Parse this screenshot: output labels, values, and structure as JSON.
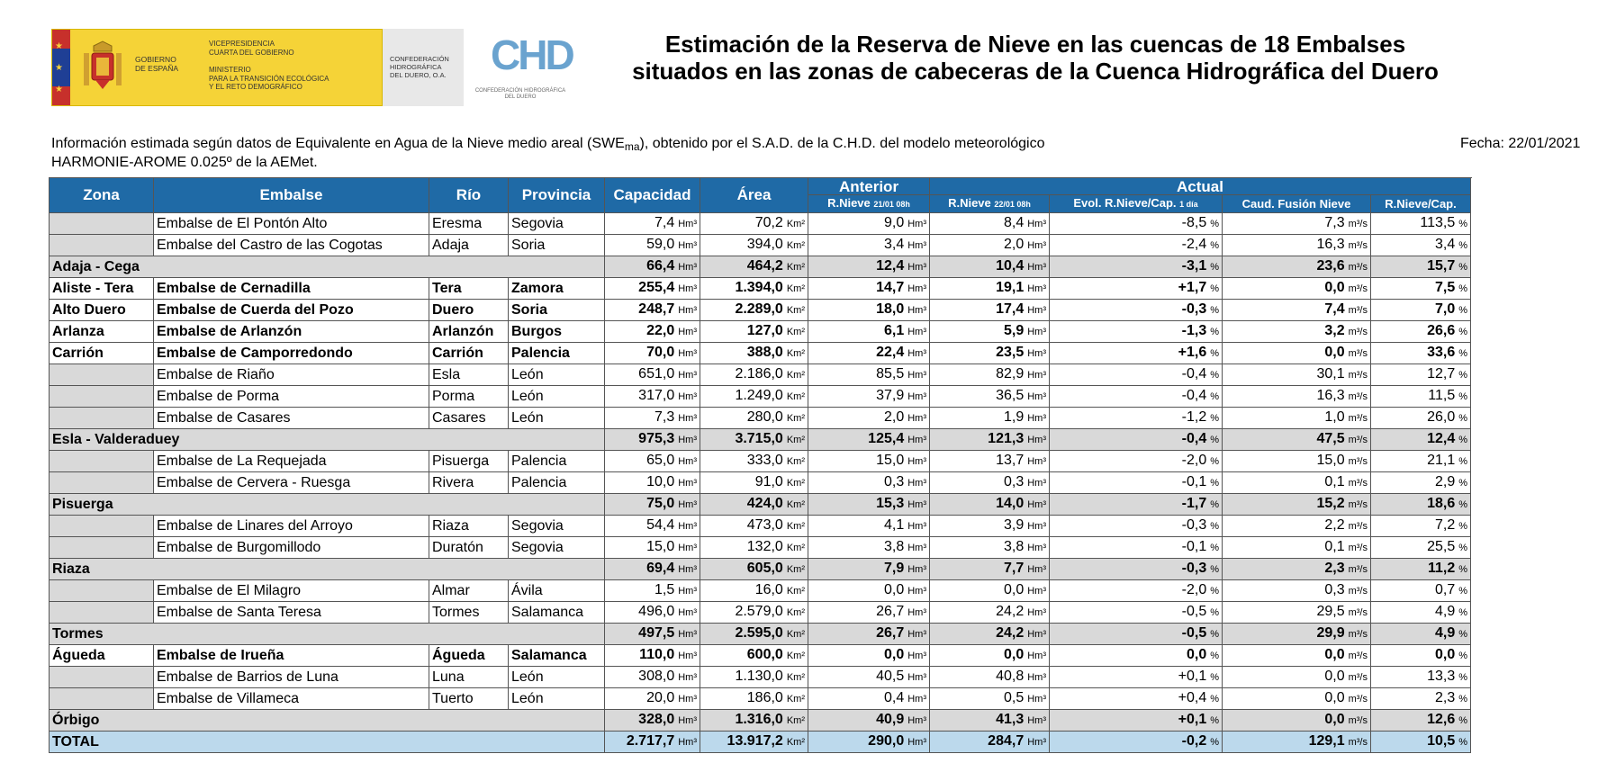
{
  "logos": {
    "gov_line1": "GOBIERNO",
    "gov_line2": "DE ESPAÑA",
    "vice_line1": "VICEPRESIDENCIA",
    "vice_line2": "CUARTA DEL GOBIERNO",
    "min_line1": "MINISTERIO",
    "min_line2": "PARA LA TRANSICIÓN ECOLÓGICA",
    "min_line3": "Y EL RETO DEMOGRÁFICO",
    "confed_line1": "CONFEDERACIÓN",
    "confed_line2": "HIDROGRÁFICA",
    "confed_line3": "DEL DUERO, O.A.",
    "chd_mark": "CHD",
    "chd_caption1": "CONFEDERACIÓN HIDROGRÁFICA",
    "chd_caption2": "DEL DUERO"
  },
  "title": {
    "line1": "Estimación de la Reserva de Nieve en las cuencas de 18 Embalses",
    "line2": "situados en las zonas de cabeceras de la Cuenca Hidrográfica del Duero"
  },
  "info": {
    "part1": "Información estimada según datos de Equivalente en Agua de la Nieve medio areal (SWE",
    "sub": "ma",
    "part2": "), obtenido por el S.A.D. de la C.H.D. del modelo meteorológico",
    "line2": "HARMONIE-AROME 0.025º de la AEMet.",
    "fecha": "Fecha: 22/01/2021"
  },
  "headers": {
    "zona": "Zona",
    "embalse": "Embalse",
    "rio": "Río",
    "provincia": "Provincia",
    "capacidad": "Capacidad",
    "area": "Área",
    "anterior": "Anterior",
    "actual": "Actual",
    "rnieve_ant": "R.Nieve ",
    "rnieve_ant_small": "21/01 08h",
    "rnieve_act": "R.Nieve ",
    "rnieve_act_small": "22/01 08h",
    "evol": "Evol. R.Nieve/Cap. ",
    "evol_small": "1 día",
    "fusion": "Caud. Fusión Nieve",
    "ratio": "R.Nieve/Cap."
  },
  "units": {
    "hm3": "Hm³",
    "km2": "Km²",
    "pct": "%",
    "m3s": "m³/s"
  },
  "rows": [
    {
      "type": "r",
      "embalse": "Embalse de El Pontón Alto",
      "rio": "Eresma",
      "provincia": "Segovia",
      "cap": "7,4",
      "area": "70,2",
      "ant": "9,0",
      "act": "8,4",
      "evol": "-8,5",
      "fus": "7,3",
      "ratio": "113,5"
    },
    {
      "type": "r",
      "embalse": "Embalse del Castro de las Cogotas",
      "rio": "Adaja",
      "provincia": "Soria",
      "cap": "59,0",
      "area": "394,0",
      "ant": "3,4",
      "act": "2,0",
      "evol": "-2,4",
      "fus": "16,3",
      "ratio": "3,4"
    },
    {
      "type": "t",
      "zona": "Adaja - Cega",
      "cap": "66,4",
      "area": "464,2",
      "ant": "12,4",
      "act": "10,4",
      "evol": "-3,1",
      "fus": "23,6",
      "ratio": "15,7"
    },
    {
      "type": "s",
      "zona": "Aliste - Tera",
      "embalse": "Embalse de Cernadilla",
      "rio": "Tera",
      "provincia": "Zamora",
      "cap": "255,4",
      "area": "1.394,0",
      "ant": "14,7",
      "act": "19,1",
      "evol": "+1,7",
      "fus": "0,0",
      "ratio": "7,5"
    },
    {
      "type": "s",
      "zona": "Alto Duero",
      "embalse": "Embalse de Cuerda del Pozo",
      "rio": "Duero",
      "provincia": "Soria",
      "cap": "248,7",
      "area": "2.289,0",
      "ant": "18,0",
      "act": "17,4",
      "evol": "-0,3",
      "fus": "7,4",
      "ratio": "7,0"
    },
    {
      "type": "s",
      "zona": "Arlanza",
      "embalse": "Embalse de Arlanzón",
      "rio": "Arlanzón",
      "provincia": "Burgos",
      "cap": "22,0",
      "area": "127,0",
      "ant": "6,1",
      "act": "5,9",
      "evol": "-1,3",
      "fus": "3,2",
      "ratio": "26,6"
    },
    {
      "type": "s",
      "zona": "Carrión",
      "embalse": "Embalse de Camporredondo",
      "rio": "Carrión",
      "provincia": "Palencia",
      "cap": "70,0",
      "area": "388,0",
      "ant": "22,4",
      "act": "23,5",
      "evol": "+1,6",
      "fus": "0,0",
      "ratio": "33,6"
    },
    {
      "type": "r",
      "embalse": "Embalse de Riaño",
      "rio": "Esla",
      "provincia": "León",
      "cap": "651,0",
      "area": "2.186,0",
      "ant": "85,5",
      "act": "82,9",
      "evol": "-0,4",
      "fus": "30,1",
      "ratio": "12,7"
    },
    {
      "type": "r",
      "embalse": "Embalse de Porma",
      "rio": "Porma",
      "provincia": "León",
      "cap": "317,0",
      "area": "1.249,0",
      "ant": "37,9",
      "act": "36,5",
      "evol": "-0,4",
      "fus": "16,3",
      "ratio": "11,5"
    },
    {
      "type": "r",
      "embalse": "Embalse de Casares",
      "rio": "Casares",
      "provincia": "León",
      "cap": "7,3",
      "area": "280,0",
      "ant": "2,0",
      "act": "1,9",
      "evol": "-1,2",
      "fus": "1,0",
      "ratio": "26,0"
    },
    {
      "type": "t",
      "zona": "Esla - Valderaduey",
      "cap": "975,3",
      "area": "3.715,0",
      "ant": "125,4",
      "act": "121,3",
      "evol": "-0,4",
      "fus": "47,5",
      "ratio": "12,4"
    },
    {
      "type": "r",
      "embalse": "Embalse de La Requejada",
      "rio": "Pisuerga",
      "provincia": "Palencia",
      "cap": "65,0",
      "area": "333,0",
      "ant": "15,0",
      "act": "13,7",
      "evol": "-2,0",
      "fus": "15,0",
      "ratio": "21,1"
    },
    {
      "type": "r",
      "embalse": "Embalse de Cervera - Ruesga",
      "rio": "Rivera",
      "provincia": "Palencia",
      "cap": "10,0",
      "area": "91,0",
      "ant": "0,3",
      "act": "0,3",
      "evol": "-0,1",
      "fus": "0,1",
      "ratio": "2,9"
    },
    {
      "type": "t",
      "zona": "Pisuerga",
      "cap": "75,0",
      "area": "424,0",
      "ant": "15,3",
      "act": "14,0",
      "evol": "-1,7",
      "fus": "15,2",
      "ratio": "18,6"
    },
    {
      "type": "r",
      "embalse": "Embalse de Linares del Arroyo",
      "rio": "Riaza",
      "provincia": "Segovia",
      "cap": "54,4",
      "area": "473,0",
      "ant": "4,1",
      "act": "3,9",
      "evol": "-0,3",
      "fus": "2,2",
      "ratio": "7,2"
    },
    {
      "type": "r",
      "embalse": "Embalse de Burgomillodo",
      "rio": "Duratón",
      "provincia": "Segovia",
      "cap": "15,0",
      "area": "132,0",
      "ant": "3,8",
      "act": "3,8",
      "evol": "-0,1",
      "fus": "0,1",
      "ratio": "25,5"
    },
    {
      "type": "t",
      "zona": "Riaza",
      "cap": "69,4",
      "area": "605,0",
      "ant": "7,9",
      "act": "7,7",
      "evol": "-0,3",
      "fus": "2,3",
      "ratio": "11,2"
    },
    {
      "type": "r",
      "embalse": "Embalse de El Milagro",
      "rio": "Almar",
      "provincia": "Ávila",
      "cap": "1,5",
      "area": "16,0",
      "ant": "0,0",
      "act": "0,0",
      "evol": "-2,0",
      "fus": "0,3",
      "ratio": "0,7"
    },
    {
      "type": "r",
      "embalse": "Embalse de Santa Teresa",
      "rio": "Tormes",
      "provincia": "Salamanca",
      "cap": "496,0",
      "area": "2.579,0",
      "ant": "26,7",
      "act": "24,2",
      "evol": "-0,5",
      "fus": "29,5",
      "ratio": "4,9"
    },
    {
      "type": "t",
      "zona": "Tormes",
      "cap": "497,5",
      "area": "2.595,0",
      "ant": "26,7",
      "act": "24,2",
      "evol": "-0,5",
      "fus": "29,9",
      "ratio": "4,9"
    },
    {
      "type": "s",
      "zona": "Águeda",
      "embalse": "Embalse de Irueña",
      "rio": "Águeda",
      "provincia": "Salamanca",
      "cap": "110,0",
      "area": "600,0",
      "ant": "0,0",
      "act": "0,0",
      "evol": "0,0",
      "fus": "0,0",
      "ratio": "0,0"
    },
    {
      "type": "r",
      "embalse": "Embalse de Barrios de Luna",
      "rio": "Luna",
      "provincia": "León",
      "cap": "308,0",
      "area": "1.130,0",
      "ant": "40,5",
      "act": "40,8",
      "evol": "+0,1",
      "fus": "0,0",
      "ratio": "13,3"
    },
    {
      "type": "r",
      "embalse": "Embalse de Villameca",
      "rio": "Tuerto",
      "provincia": "León",
      "cap": "20,0",
      "area": "186,0",
      "ant": "0,4",
      "act": "0,5",
      "evol": "+0,4",
      "fus": "0,0",
      "ratio": "2,3"
    },
    {
      "type": "t",
      "zona": "Órbigo",
      "cap": "328,0",
      "area": "1.316,0",
      "ant": "40,9",
      "act": "41,3",
      "evol": "+0,1",
      "fus": "0,0",
      "ratio": "12,6"
    },
    {
      "type": "g",
      "zona": "TOTAL",
      "cap": "2.717,7",
      "area": "13.917,2",
      "ant": "290,0",
      "act": "284,7",
      "evol": "-0,2",
      "fus": "129,1",
      "ratio": "10,5"
    }
  ]
}
